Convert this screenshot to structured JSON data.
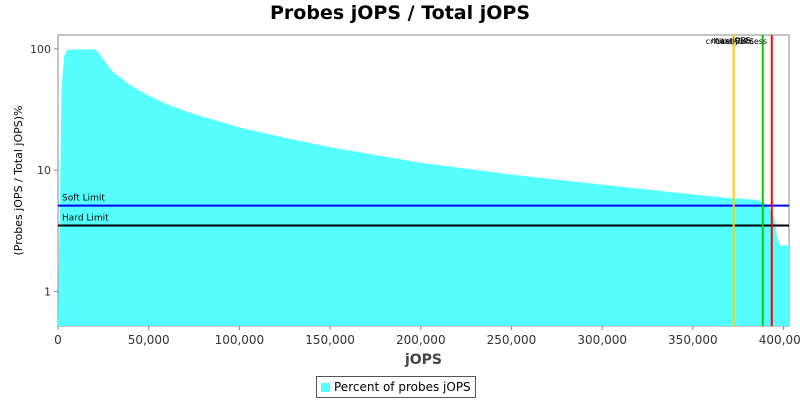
{
  "chart_data": {
    "type": "area",
    "title": "Probes jOPS / Total jOPS",
    "xlabel": "jOPS",
    "ylabel": "(Probes jOPS / Total jOPS)%",
    "y_scale": "log",
    "xlim": [
      0,
      403000
    ],
    "ylim": [
      0.52,
      130
    ],
    "x_ticks": [
      0,
      50000,
      100000,
      150000,
      200000,
      250000,
      300000,
      350000,
      400000
    ],
    "x_tick_labels": [
      "0",
      "50,000",
      "100,000",
      "150,000",
      "200,000",
      "250,000",
      "300,000",
      "350,000",
      "400,000"
    ],
    "y_ticks": [
      1,
      10,
      100
    ],
    "y_tick_labels": [
      "1",
      "10",
      "100"
    ],
    "grid": false,
    "legend_position": "bottom",
    "series": [
      {
        "name": "Percent of probes jOPS",
        "color": "#55ffff",
        "x": [
          0,
          2000,
          3500,
          5000,
          10000,
          15000,
          20000,
          22000,
          25000,
          30000,
          40000,
          50000,
          60000,
          75000,
          100000,
          125000,
          150000,
          200000,
          250000,
          300000,
          350000,
          370000,
          385000,
          390000,
          392000,
          395000,
          396000,
          398000,
          400000,
          403000
        ],
        "y": [
          0.52,
          48,
          88,
          98,
          99,
          99,
          99,
          95,
          82,
          65,
          50,
          41,
          35,
          29,
          22.5,
          18.5,
          15.5,
          11.5,
          9.2,
          7.6,
          6.3,
          5.9,
          5.7,
          5.3,
          5.0,
          4.0,
          3.0,
          2.4,
          2.4,
          2.4
        ]
      }
    ],
    "horizontal_lines": [
      {
        "label": "Soft Limit",
        "y": 5.1,
        "color": "#0000ff"
      },
      {
        "label": "Hard Limit",
        "y": 3.5,
        "color": "#000000"
      }
    ],
    "vertical_lines": [
      {
        "label": "max-jOPS",
        "x": 372500,
        "color": "#ffcc00"
      },
      {
        "label": "critical-jOPS",
        "x": 388500,
        "color": "#00cc00"
      },
      {
        "label": "Last Success",
        "x": 393500,
        "color": "#ff0000"
      }
    ],
    "vertical_line_label_text": "critical-jOPS max-jOPS Last Success"
  }
}
